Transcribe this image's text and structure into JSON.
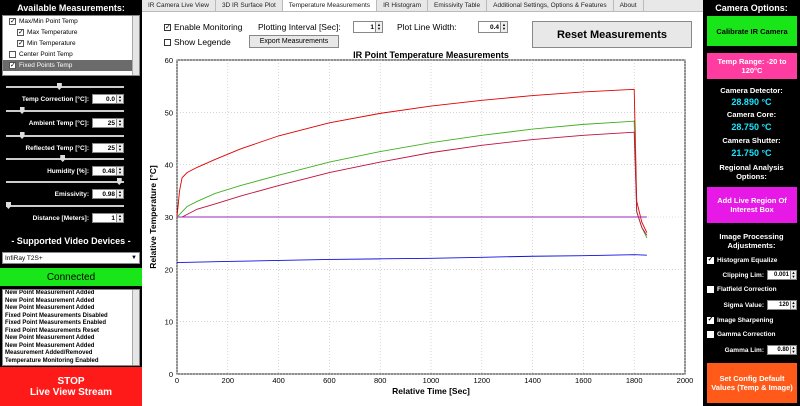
{
  "left": {
    "header": "Available Measurements:",
    "measurements": [
      {
        "label": "Max/Min Point Temp",
        "checked": true,
        "indent": 1
      },
      {
        "label": "Max Temperature",
        "checked": true,
        "indent": 2
      },
      {
        "label": "Min Temperature",
        "checked": true,
        "indent": 2
      },
      {
        "label": "Center Point Temp",
        "checked": false,
        "indent": 1
      },
      {
        "label": "Fixed Points Temp",
        "checked": true,
        "indent": 1,
        "selected": true
      }
    ],
    "params": [
      {
        "label": "Temp Correction [°C]:",
        "value": "0.0",
        "level": 0.45
      },
      {
        "label": "Ambient Temp [°C]:",
        "value": "25",
        "level": 0.12
      },
      {
        "label": "Reflected Temp [°C]:",
        "value": "25",
        "level": 0.12
      },
      {
        "label": "Humidity [%]:",
        "value": "0.48",
        "level": 0.48
      },
      {
        "label": "Emissivity:",
        "value": "0.98",
        "level": 0.98
      },
      {
        "label": "Distance [Meters]:",
        "value": "1",
        "level": 0.0
      }
    ],
    "devices_header": "- Supported Video Devices -",
    "device": "InfiRay T2S+",
    "status": "Connected",
    "log": [
      "New Point Measurement Added",
      "New Point Measurement Added",
      "New Point Measurement Added",
      "Fixed Point Measurements Disabled",
      "Fixed Point Measurements Enabled",
      "Fixed Point Measurements Reset",
      "New Point Measurement Added",
      "New Point Measurement Added",
      "Measurement Added/Removed",
      "Temperature Monitoring Enabled"
    ],
    "stop_line1": "STOP",
    "stop_line2": "Live View Stream"
  },
  "tabs": [
    "IR Camera Live View",
    "3D IR Surface Plot",
    "Temperature Measurements",
    "IR Histogram",
    "Emissivity Table",
    "Additional Settings, Options & Features",
    "About"
  ],
  "active_tab": 2,
  "controls": {
    "enable_monitoring": "Enable Monitoring",
    "plot_interval_label": "Plotting Interval [Sec]:",
    "plot_interval_value": "1",
    "line_width_label": "Plot Line Width:",
    "line_width_value": "0.4",
    "show_legend": "Show Legende",
    "export": "Export Measurements",
    "reset": "Reset Measurements"
  },
  "chart_data": {
    "type": "line",
    "title": "IR Point Temperature Measurements",
    "xlabel": "Relative Time [Sec]",
    "ylabel": "Relative Temperature [°C]",
    "xlim": [
      0,
      2000
    ],
    "ylim": [
      0,
      60
    ],
    "xticks": [
      0,
      200,
      400,
      600,
      800,
      1000,
      1200,
      1400,
      1600,
      1800,
      2000
    ],
    "yticks": [
      0,
      10,
      20,
      30,
      40,
      50,
      60
    ],
    "grid": true,
    "series": [
      {
        "color": "#e00000",
        "x": [
          0,
          10,
          20,
          40,
          80,
          150,
          250,
          400,
          600,
          800,
          1000,
          1200,
          1400,
          1600,
          1800,
          1810,
          1830,
          1850
        ],
        "y": [
          30,
          35,
          37.5,
          38.5,
          39.5,
          41,
          43,
          45.5,
          48,
          49.8,
          51.2,
          52.3,
          53.2,
          53.9,
          54.4,
          33,
          29,
          27
        ]
      },
      {
        "color": "#40b020",
        "x": [
          0,
          10,
          20,
          40,
          80,
          150,
          250,
          400,
          600,
          800,
          1000,
          1200,
          1400,
          1600,
          1800,
          1810,
          1830,
          1850
        ],
        "y": [
          30,
          30.5,
          31,
          32,
          33,
          34.5,
          36,
          38,
          40.5,
          42.5,
          44.2,
          45.6,
          46.8,
          47.7,
          48.3,
          31,
          28,
          26
        ]
      },
      {
        "color": "#c01040",
        "x": [
          0,
          10,
          20,
          40,
          80,
          150,
          250,
          400,
          600,
          800,
          1000,
          1200,
          1400,
          1600,
          1800,
          1810,
          1830,
          1850
        ],
        "y": [
          30,
          30,
          30,
          30.5,
          31.5,
          32.5,
          34,
          36,
          38.5,
          40.5,
          42.3,
          43.7,
          44.8,
          45.6,
          46.2,
          31,
          28,
          26.5
        ]
      },
      {
        "color": "#a020c0",
        "x": [
          0,
          1850
        ],
        "y": [
          30,
          30
        ]
      },
      {
        "color": "#1010e0",
        "x": [
          0,
          200,
          400,
          600,
          800,
          1000,
          1200,
          1400,
          1600,
          1800,
          1850
        ],
        "y": [
          21.3,
          21.5,
          21.7,
          21.9,
          22.0,
          22.1,
          22.3,
          22.5,
          22.6,
          22.8,
          22.7
        ]
      }
    ]
  },
  "right": {
    "header": "Camera Options:",
    "calibrate": "Calibrate IR Camera",
    "temp_range": "Temp Range: -20 to 120°C",
    "detector_label": "Camera Detector:",
    "detector_value": "28.890 °C",
    "core_label": "Camera Core:",
    "core_value": "28.750 °C",
    "shutter_label": "Camera Shutter:",
    "shutter_value": "21.750 °C",
    "regional": "Regional Analysis Options:",
    "add_roi": "Add Live Region Of Interest Box",
    "img_proc": "Image Processing Adjustments:",
    "hist_eq": "Histogram Equalize",
    "clip_label": "Clipping Lim:",
    "clip_value": "0.001",
    "flatfield": "Flatfield Correction",
    "sigma_label": "Sigma Value:",
    "sigma_value": "120",
    "sharpen": "Image Sharpening",
    "gamma_corr": "Gamma Correction",
    "gamma_label": "Gamma Lim:",
    "gamma_value": "0.80",
    "set_config": "Set Config Default Values (Temp & Image)"
  },
  "colors": {
    "green": "#19e619",
    "red": "#ff1a1a",
    "magenta": "#e619e6",
    "pink": "#ff3ca0",
    "orange": "#ff5a1a",
    "cyan": "#19e6ff"
  }
}
